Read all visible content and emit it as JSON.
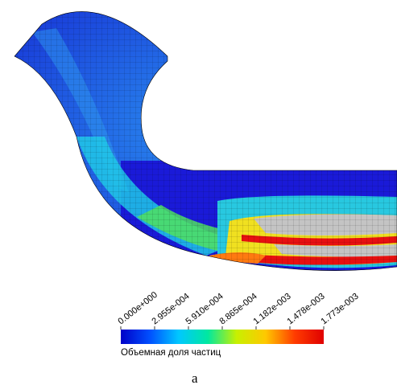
{
  "colorbar": {
    "ticks": [
      "0.000e+000",
      "2.955e-004",
      "5.910e-004",
      "8.865e-004",
      "1.182e-003",
      "1.478e-003",
      "1.773e-003"
    ],
    "title": "Объемная доля частиц",
    "colors": [
      "#0000c8",
      "#0050ff",
      "#00c8ff",
      "#00e8a0",
      "#c8f000",
      "#ffc800",
      "#ff3c00",
      "#e00000"
    ]
  },
  "sub_label": "a",
  "field_colors": {
    "background_flow": "#1818d6",
    "inlet_blue": "#1e6ee8",
    "cyan": "#20d0e8",
    "green": "#40e060",
    "yellow": "#f0e020",
    "orange": "#ff7a10",
    "red": "#e81010",
    "gray": "#c4c4c4",
    "mesh": "#000000"
  }
}
